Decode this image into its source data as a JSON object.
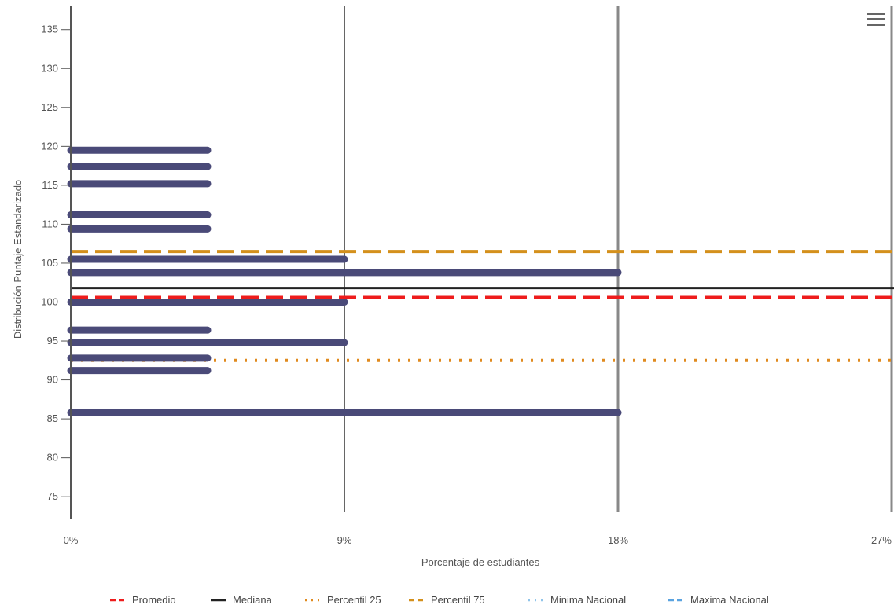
{
  "chart_data": {
    "type": "bar",
    "orientation": "horizontal",
    "xlabel": "Porcentaje de estudiantes",
    "ylabel": "Distribución Puntaje Estandarizado",
    "xlim": [
      0,
      27
    ],
    "ylim": [
      73,
      138
    ],
    "x_ticks": [
      0,
      9,
      18,
      27
    ],
    "x_tick_labels": [
      "0%",
      "9%",
      "18%",
      "27%"
    ],
    "y_ticks": [
      75,
      80,
      85,
      90,
      95,
      100,
      105,
      110,
      115,
      120,
      125,
      130,
      135
    ],
    "y_tick_labels": [
      "75",
      "80",
      "85",
      "90",
      "95",
      "100",
      "105",
      "110",
      "115",
      "120",
      "125",
      "130",
      "135"
    ],
    "grid": "vertical",
    "bar_color": "#4a4a78",
    "series": [
      {
        "points": [
          {
            "y": 119.5,
            "x": 4.5
          },
          {
            "y": 117.4,
            "x": 4.5
          },
          {
            "y": 115.2,
            "x": 4.5
          },
          {
            "y": 111.2,
            "x": 4.5
          },
          {
            "y": 109.4,
            "x": 4.5
          },
          {
            "y": 105.5,
            "x": 9
          },
          {
            "y": 103.8,
            "x": 18
          },
          {
            "y": 100.0,
            "x": 9
          },
          {
            "y": 96.4,
            "x": 4.5
          },
          {
            "y": 94.8,
            "x": 9
          },
          {
            "y": 92.8,
            "x": 4.5
          },
          {
            "y": 91.2,
            "x": 4.5
          },
          {
            "y": 85.8,
            "x": 18
          }
        ]
      }
    ],
    "reference_lines": [
      {
        "name": "Promedio",
        "y": 100.6,
        "color": "#ee1c1c",
        "style": "dashed"
      },
      {
        "name": "Mediana",
        "y": 101.8,
        "color": "#222222",
        "style": "solid"
      },
      {
        "name": "Percentil 25",
        "y": 92.5,
        "color": "#e08a1e",
        "style": "dotted"
      },
      {
        "name": "Percentil 75",
        "y": 106.5,
        "color": "#d4901c",
        "style": "dashed"
      },
      {
        "name": "Minima Nacional",
        "y": null,
        "color": "#8fc4ea",
        "style": "dotted"
      },
      {
        "name": "Maxima Nacional",
        "y": null,
        "color": "#5aa3e0",
        "style": "dashed"
      }
    ],
    "legend_placement": "bottom"
  },
  "ui": {
    "menu_icon": "hamburger-menu-icon"
  }
}
